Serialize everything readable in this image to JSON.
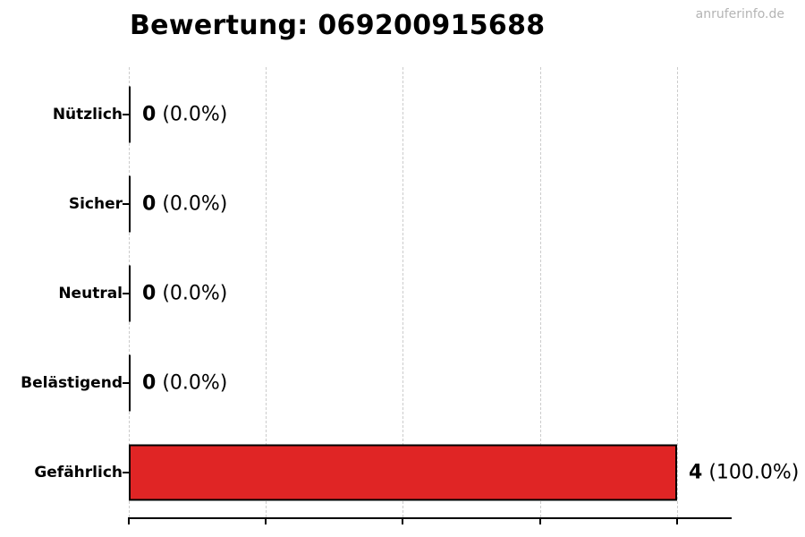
{
  "watermark": "anruferinfo.de",
  "chart_data": {
    "type": "bar",
    "orientation": "horizontal",
    "title": "Bewertung: 069200915688",
    "categories": [
      "Nützlich",
      "Sicher",
      "Neutral",
      "Belästigend",
      "Gefährlich"
    ],
    "values": [
      0,
      0,
      0,
      0,
      4
    ],
    "value_labels": [
      {
        "value": "0",
        "pct": "(0.0%)"
      },
      {
        "value": "0",
        "pct": "(0.0%)"
      },
      {
        "value": "0",
        "pct": "(0.0%)"
      },
      {
        "value": "0",
        "pct": "(0.0%)"
      },
      {
        "value": "4",
        "pct": "(100.0%)"
      }
    ],
    "total_votes": 4,
    "xlabel": "",
    "ylabel": "",
    "xlim": [
      0,
      4.4
    ],
    "x_ticks": [
      0,
      1,
      2,
      3,
      4
    ],
    "x_tick_labels": [],
    "grid": "vertical-dashed",
    "legend": "none",
    "colors": {
      "bar_fill": "#e02525",
      "bar_border": "#000000",
      "zero_bar": "#000000",
      "grid_line": "#cccccc",
      "axis_line": "#000000",
      "text": "#000000",
      "watermark": "#b4b4b4"
    }
  }
}
